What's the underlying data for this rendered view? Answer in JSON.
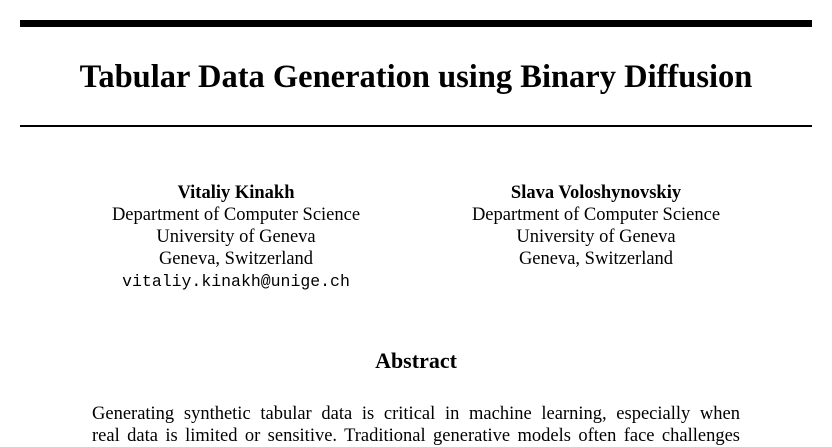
{
  "paper": {
    "title": "Tabular Data Generation using Binary Diffusion",
    "authors": [
      {
        "name": "Vitaliy Kinakh",
        "department": "Department of Computer Science",
        "institution": "University of Geneva",
        "location": "Geneva, Switzerland",
        "email": "vitaliy.kinakh@unige.ch"
      },
      {
        "name": "Slava Voloshynovskiy",
        "department": "Department of Computer Science",
        "institution": "University of Geneva",
        "location": "Geneva, Switzerland"
      }
    ],
    "abstract": {
      "heading": "Abstract",
      "lines": [
        "Generating synthetic tabular data is critical in machine learning, especially when",
        "real data is limited or sensitive. Traditional generative models often face challenges"
      ]
    }
  }
}
